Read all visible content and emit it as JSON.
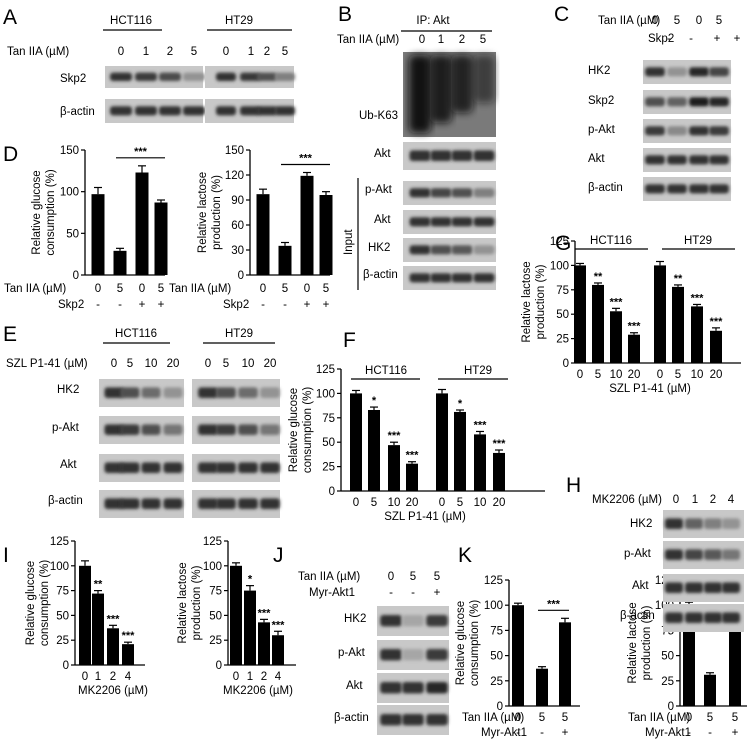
{
  "panels": {
    "A": {
      "letter": "A",
      "label": "Tan IIA (µM)",
      "doses": [
        "0",
        "1",
        "2",
        "5"
      ],
      "groups": [
        "HCT116",
        "HT29"
      ],
      "rows": [
        {
          "name": "Skp2",
          "intensity": [
            0.85,
            0.8,
            0.72,
            0.35
          ]
        },
        {
          "name": "β-actin",
          "intensity": [
            0.85,
            0.85,
            0.85,
            0.85
          ]
        }
      ],
      "rows_ht29": [
        [
          0.85,
          0.82,
          0.7,
          0.45
        ],
        [
          0.85,
          0.85,
          0.85,
          0.85
        ]
      ]
    },
    "B": {
      "letter": "B",
      "ip_label": "IP: Akt",
      "label": "Tan IIA (µM)",
      "doses": [
        "0",
        "1",
        "2",
        "5"
      ],
      "rows": [
        {
          "name": "Ub-K63"
        },
        {
          "name": "Akt",
          "intensity": [
            0.85,
            0.85,
            0.85,
            0.85
          ]
        },
        {
          "name": "p-Akt",
          "intensity": [
            0.85,
            0.75,
            0.7,
            0.45
          ]
        },
        {
          "name": "Akt",
          "intensity": [
            0.85,
            0.85,
            0.85,
            0.85
          ]
        },
        {
          "name": "HK2",
          "intensity": [
            0.85,
            0.7,
            0.65,
            0.35
          ]
        },
        {
          "name": "β-actin",
          "intensity": [
            0.85,
            0.85,
            0.85,
            0.85
          ]
        }
      ],
      "input_label": "Input"
    },
    "C": {
      "letter": "C",
      "cond_labels": [
        "Tan IIA (µM)",
        "Skp2"
      ],
      "cond_values": [
        [
          "0",
          "5",
          "0",
          "5"
        ],
        [
          "-",
          "-",
          "+",
          "+"
        ]
      ],
      "rows": [
        {
          "name": "HK2",
          "intensity": [
            0.85,
            0.35,
            0.9,
            0.75
          ]
        },
        {
          "name": "Skp2",
          "intensity": [
            0.7,
            0.6,
            0.95,
            0.9
          ]
        },
        {
          "name": "p-Akt",
          "intensity": [
            0.8,
            0.4,
            0.85,
            0.8
          ]
        },
        {
          "name": "Akt",
          "intensity": [
            0.85,
            0.85,
            0.85,
            0.85
          ]
        },
        {
          "name": "β-actin",
          "intensity": [
            0.85,
            0.85,
            0.85,
            0.85
          ]
        }
      ]
    },
    "D": {
      "letter": "D",
      "cond_labels": [
        "Tan IIA (µM)",
        "Skp2"
      ],
      "cond_values": [
        [
          "0",
          "5",
          "0",
          "5"
        ],
        [
          "-",
          "-",
          "+",
          "+"
        ]
      ]
    },
    "E": {
      "letter": "E",
      "label": "SZL P1-41 (µM)",
      "doses": [
        "0",
        "5",
        "10",
        "20"
      ],
      "groups": [
        "HCT116",
        "HT29"
      ],
      "rows": [
        {
          "name": "HK2",
          "intensity": [
            0.85,
            0.7,
            0.55,
            0.35
          ]
        },
        {
          "name": "p-Akt",
          "intensity": [
            0.85,
            0.8,
            0.7,
            0.5
          ]
        },
        {
          "name": "Akt",
          "intensity": [
            0.85,
            0.85,
            0.85,
            0.85
          ]
        },
        {
          "name": "β-actin",
          "intensity": [
            0.85,
            0.85,
            0.85,
            0.85
          ]
        }
      ]
    },
    "F": {
      "letter": "F"
    },
    "G": {
      "letter": "G"
    },
    "H": {
      "letter": "H",
      "label": "MK2206 (µM)",
      "doses": [
        "0",
        "1",
        "2",
        "4"
      ],
      "rows": [
        {
          "name": "HK2",
          "intensity": [
            0.85,
            0.6,
            0.45,
            0.35
          ]
        },
        {
          "name": "p-Akt",
          "intensity": [
            0.85,
            0.75,
            0.65,
            0.5
          ]
        },
        {
          "name": "Akt",
          "intensity": [
            0.85,
            0.85,
            0.85,
            0.85
          ]
        },
        {
          "name": "β-actin",
          "intensity": [
            0.85,
            0.85,
            0.85,
            0.85
          ]
        }
      ]
    },
    "I": {
      "letter": "I"
    },
    "J": {
      "letter": "J",
      "cond_labels": [
        "Tan IIA (µM)",
        "Myr-Akt1"
      ],
      "cond_values": [
        [
          "0",
          "5",
          "5"
        ],
        [
          "-",
          "-",
          "+"
        ]
      ],
      "rows": [
        {
          "name": "HK2",
          "intensity": [
            0.85,
            0.25,
            0.8
          ]
        },
        {
          "name": "p-Akt",
          "intensity": [
            0.85,
            0.25,
            0.8
          ]
        },
        {
          "name": "Akt",
          "intensity": [
            0.85,
            0.85,
            0.9
          ]
        },
        {
          "name": "β-actin",
          "intensity": [
            0.85,
            0.85,
            0.85
          ]
        }
      ]
    },
    "K": {
      "letter": "K",
      "cond_labels": [
        "Tan IIA (µM)",
        "Myr-Akt1"
      ],
      "cond_values": [
        [
          "0",
          "5",
          "5"
        ],
        [
          "-",
          "-",
          "+"
        ]
      ]
    }
  },
  "chart_data": [
    {
      "id": "D1",
      "type": "bar",
      "ylabel": "Relative glucose consumption (%)",
      "ylim": [
        0,
        150
      ],
      "yticks": [
        0,
        50,
        100,
        150
      ],
      "values": [
        97,
        29,
        123,
        87
      ],
      "errors": [
        8,
        3,
        8,
        3
      ],
      "brackets": [
        {
          "from": 1,
          "to": 3,
          "label": "***"
        }
      ],
      "stars": [
        "",
        "",
        "",
        ""
      ]
    },
    {
      "id": "D2",
      "type": "bar",
      "ylabel": "Relative lactose production (%)",
      "ylim": [
        0,
        150
      ],
      "yticks": [
        0,
        30,
        60,
        90,
        120,
        150
      ],
      "values": [
        97,
        35,
        119,
        96
      ],
      "errors": [
        6,
        4,
        4,
        4
      ],
      "brackets": [
        {
          "from": 1,
          "to": 3,
          "label": "***"
        }
      ],
      "stars": [
        "",
        "",
        "",
        ""
      ]
    },
    {
      "id": "F",
      "type": "bar",
      "ylabel": "Relative glucose consumption (%)",
      "ylim": [
        0,
        125
      ],
      "yticks": [
        0,
        25,
        50,
        75,
        100,
        125
      ],
      "groups": [
        "HCT116",
        "HT29"
      ],
      "categories": [
        "0",
        "5",
        "10",
        "20"
      ],
      "xlabel": "SZL P1-41 (µM)",
      "values": [
        [
          100,
          83,
          47,
          28
        ],
        [
          100,
          81,
          58,
          39
        ]
      ],
      "errors": [
        [
          3,
          3,
          3,
          2
        ],
        [
          4,
          2,
          3,
          3
        ]
      ],
      "stars": [
        [
          "",
          "*",
          "***",
          "***"
        ],
        [
          "",
          "*",
          "***",
          "***"
        ]
      ]
    },
    {
      "id": "G",
      "type": "bar",
      "ylabel": "Relative lactose production (%)",
      "ylim": [
        0,
        125
      ],
      "yticks": [
        0,
        25,
        50,
        75,
        100,
        125
      ],
      "groups": [
        "HCT116",
        "HT29"
      ],
      "categories": [
        "0",
        "5",
        "10",
        "20"
      ],
      "xlabel": "SZL P1-41 (µM)",
      "values": [
        [
          100,
          80,
          53,
          29
        ],
        [
          100,
          78,
          58,
          33
        ]
      ],
      "errors": [
        [
          2,
          2,
          3,
          2
        ],
        [
          4,
          2,
          2,
          3
        ]
      ],
      "stars": [
        [
          "",
          "**",
          "***",
          "***"
        ],
        [
          "",
          "**",
          "***",
          "***"
        ]
      ]
    },
    {
      "id": "I1",
      "type": "bar",
      "ylabel": "Relative glucose consumption (%)",
      "ylim": [
        0,
        125
      ],
      "yticks": [
        0,
        25,
        50,
        75,
        100,
        125
      ],
      "categories": [
        "0",
        "1",
        "2",
        "4"
      ],
      "xlabel": "MK2206 (µM)",
      "values": [
        100,
        72,
        37,
        21
      ],
      "errors": [
        5,
        3,
        3,
        2
      ],
      "stars": [
        "",
        "**",
        "***",
        "***"
      ]
    },
    {
      "id": "I2",
      "type": "bar",
      "ylabel": "Relative lactose production (%)",
      "ylim": [
        0,
        125
      ],
      "yticks": [
        0,
        25,
        50,
        75,
        100,
        125
      ],
      "categories": [
        "0",
        "1",
        "2",
        "4"
      ],
      "xlabel": "MK2206 (µM)",
      "values": [
        100,
        75,
        43,
        30
      ],
      "errors": [
        3,
        5,
        3,
        4
      ],
      "stars": [
        "",
        "*",
        "***",
        "***"
      ]
    },
    {
      "id": "K1",
      "type": "bar",
      "ylabel": "Relative glucose consumption (%)",
      "ylim": [
        0,
        125
      ],
      "yticks": [
        0,
        25,
        50,
        75,
        100,
        125
      ],
      "values": [
        100,
        37,
        83
      ],
      "errors": [
        2,
        2,
        4
      ],
      "brackets": [
        {
          "from": 1,
          "to": 2,
          "label": "***"
        }
      ],
      "stars": [
        "",
        "",
        ""
      ]
    },
    {
      "id": "K2",
      "type": "bar",
      "ylabel": "Relative lactose production (%)",
      "ylim": [
        0,
        125
      ],
      "yticks": [
        0,
        25,
        50,
        75,
        100,
        125
      ],
      "values": [
        100,
        31,
        79
      ],
      "errors": [
        3,
        2,
        3
      ],
      "brackets": [
        {
          "from": 1,
          "to": 2,
          "label": "***"
        }
      ],
      "stars": [
        "",
        "",
        ""
      ]
    }
  ]
}
